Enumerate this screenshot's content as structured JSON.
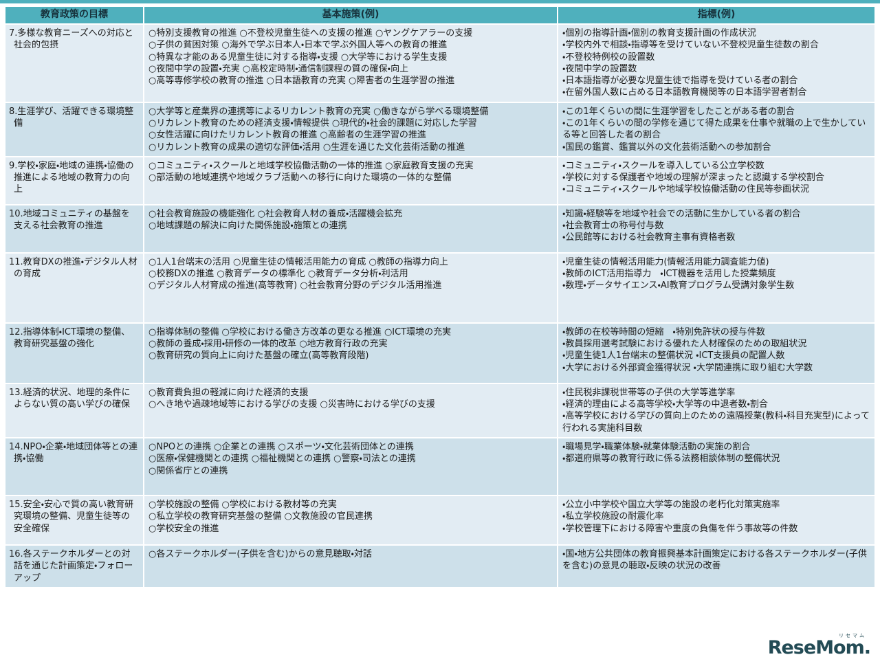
{
  "colors": {
    "accent_teal": "#4fb0bd",
    "header_bg": "#4fb0bd",
    "header_text": "#17323c",
    "row_bg_dark": "#cde0ea",
    "row_bg_light": "#e2ecf3",
    "body_text": "#1c1c1c",
    "logo_color": "#234b55"
  },
  "table": {
    "columns": [
      "教育政策の目標",
      "基本施策(例)",
      "指標(例)"
    ],
    "rows": [
      {
        "goal": "7.多様な教育ニーズへの対応と社会的包摂",
        "measures": "○特別支援教育の推進 ○不登校児童生徒への支援の推進 ○ヤングケアラーの支援\n○子供の貧困対策 ○海外で学ぶ日本人・日本で学ぶ外国人等への教育の推進\n○特異な才能のある児童生徒に対する指導・支援 ○大学等における学生支援\n○夜間中学の設置・充実 ○高校定時制・通信制課程の質の確保・向上\n○高等専修学校の教育の推進 ○日本語教育の充実 ○障害者の生涯学習の推進",
        "indicators": "・個別の指導計画・個別の教育支援計画の作成状況\n・学校内外で相談・指導等を受けていない不登校児童生徒数の割合\n・不登校特例校の設置数\n・夜間中学の設置数\n・日本語指導が必要な児童生徒で指導を受けている者の割合\n・在留外国人数に占める日本語教育機関等の日本語学習者割合"
      },
      {
        "goal": "8.生涯学び、活躍できる環境整備",
        "measures": "○大学等と産業界の連携等によるリカレント教育の充実 ○働きながら学べる環境整備\n○リカレント教育のための経済支援・情報提供 ○現代的・社会的課題に対応した学習\n○女性活躍に向けたリカレント教育の推進 ○高齢者の生涯学習の推進\n○リカレント教育の成果の適切な評価・活用 ○生涯を通じた文化芸術活動の推進",
        "indicators": "・この1年くらいの間に生涯学習をしたことがある者の割合\n・この1年くらいの間の学修を通じて得た成果を仕事や就職の上で生かしている等と回答した者の割合\n・国民の鑑賞、鑑賞以外の文化芸術活動への参加割合"
      },
      {
        "goal": "9.学校・家庭・地域の連携・協働の推進による地域の教育力の向上",
        "measures": "○コミュニティ・スクールと地域学校協働活動の一体的推進 ○家庭教育支援の充実\n○部活動の地域連携や地域クラブ活動への移行に向けた環境の一体的な整備",
        "indicators": "・コミュニティ・スクールを導入している公立学校数\n・学校に対する保護者や地域の理解が深まったと認識する学校割合\n・コミュニティ・スクールや地域学校協働活動の住民等参画状況"
      },
      {
        "goal": "10.地域コミュニティの基盤を支える社会教育の推進",
        "measures": "○社会教育施設の機能強化 ○社会教育人材の養成・活躍機会拡充\n○地域課題の解決に向けた関係施設・施策との連携",
        "indicators": "・知識・経験等を地域や社会での活動に生かしている者の割合\n・社会教育士の称号付与数\n・公民館等における社会教育主事有資格者数"
      },
      {
        "goal": "11.教育DXの推進・デジタル人材の育成",
        "measures": "○1人1台端末の活用 ○児童生徒の情報活用能力の育成 ○教師の指導力向上\n○校務DXの推進 ○教育データの標準化 ○教育データ分析・利活用\n○デジタル人材育成の推進(高等教育) ○社会教育分野のデジタル活用推進",
        "indicators": "・児童生徒の情報活用能力(情報活用能力調査能力値)\n・教師のICT活用指導力　・ICT機器を活用した授業頻度\n・数理・データサイエンス・AI教育プログラム受講対象学生数"
      },
      {
        "goal": "12.指導体制・ICT環境の整備、教育研究基盤の強化",
        "measures": "○指導体制の整備 ○学校における働き方改革の更なる推進 ○ICT環境の充実\n○教師の養成・採用・研修の一体的改革 ○地方教育行政の充実\n○教育研究の質向上に向けた基盤の確立(高等教育段階)",
        "indicators": "・教師の在校等時間の短縮　・特別免許状の授与件数\n・教員採用選考試験における優れた人材確保のための取組状況\n・児童生徒1人1台端末の整備状況 ・ICT支援員の配置人数\n・大学における外部資金獲得状況 ・大学間連携に取り組む大学数"
      },
      {
        "goal": "13.経済的状況、地理的条件によらない質の高い学びの確保",
        "measures": "○教育費負担の軽減に向けた経済的支援\n○へき地や過疎地域等における学びの支援 ○災害時における学びの支援",
        "indicators": "・住民税非課税世帯等の子供の大学等進学率\n・経済的理由による高等学校・大学等の中退者数・割合\n・高等学校における学びの質向上のための遠隔授業(教科・科目充実型)によって行われる実施科目数"
      },
      {
        "goal": "14.NPO・企業・地域団体等との連携・協働",
        "measures": "○NPOとの連携 ○企業との連携 ○スポーツ・文化芸術団体との連携\n○医療・保健機関との連携 ○福祉機関との連携 ○警察・司法との連携\n○関係省庁との連携",
        "indicators": "・職場見学・職業体験・就業体験活動の実施の割合\n・都道府県等の教育行政に係る法務相談体制の整備状況"
      },
      {
        "goal": "15.安全・安心で質の高い教育研究環境の整備、児童生徒等の安全確保",
        "measures": "○学校施設の整備 ○学校における教材等の充実\n○私立学校の教育研究基盤の整備 ○文教施設の官民連携\n○学校安全の推進",
        "indicators": "・公立小中学校や国立大学等の施設の老朽化対策実施率\n・私立学校施設の耐震化率\n・学校管理下における障害や重度の負傷を伴う事故等の件数"
      },
      {
        "goal": "16.各ステークホルダーとの対話を通じた計画策定・フォローアップ",
        "measures": "○各ステークホルダー(子供を含む)からの意見聴取・対話",
        "indicators": "・国・地方公共団体の教育振興基本計画策定における各ステークホルダー(子供を含む)の意見の聴取・反映の状況の改善"
      }
    ]
  },
  "footer": {
    "logo_text": "ReseMom.",
    "logo_ruby": "リセマム"
  }
}
